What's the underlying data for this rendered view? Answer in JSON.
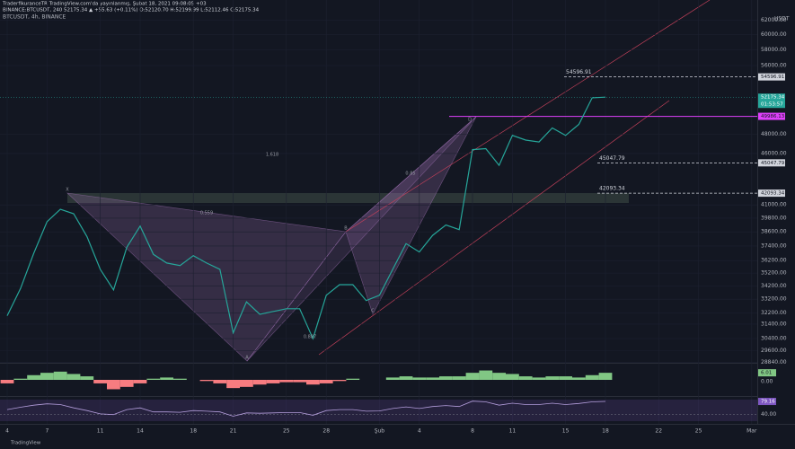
{
  "header": {
    "publisher": "TraderfikuranceTR TradingView.com'da yayınlanmış, Şubat 18, 2021 09:08:05 +03",
    "symbol_line": "BINANCE:BTCUSDT, 240  52175.34 ▲ +55.63 (+0.11%) O:52120.70 H:52199.99 L:52112.46 C:52175.34"
  },
  "chart_data": {
    "type": "line",
    "title": "BTCUSDT, 4h, BINANCE",
    "y_unit": "USDT",
    "categories": [
      "4",
      null,
      null,
      "7",
      null,
      null,
      null,
      "11",
      null,
      null,
      "14",
      null,
      null,
      null,
      "18",
      null,
      null,
      "21",
      null,
      null,
      null,
      "25",
      null,
      null,
      "28",
      null,
      null,
      null,
      "Şub",
      null,
      null,
      "4",
      null,
      null,
      null,
      "8",
      null,
      null,
      "11",
      null,
      null,
      null,
      "15",
      null,
      null,
      "18",
      null,
      null,
      null,
      "22",
      null,
      null,
      "25",
      null,
      null,
      null,
      "Mar"
    ],
    "values": [
      32000,
      34000,
      36800,
      39500,
      40600,
      40200,
      38200,
      35500,
      33900,
      37300,
      39100,
      36700,
      36000,
      35800,
      36600,
      36000,
      35500,
      30800,
      33000,
      32100,
      32300,
      32500,
      32500,
      30400,
      33500,
      34300,
      34300,
      33100,
      33500,
      35500,
      37600,
      36900,
      38300,
      39200,
      38800,
      46400,
      46500,
      44800,
      47900,
      47400,
      47200,
      48700,
      47900,
      49100,
      52100,
      52175.34,
      null,
      null,
      null,
      null,
      null,
      null,
      null,
      null,
      null,
      null,
      null
    ],
    "color": "#26a69a",
    "log_scale": true,
    "grid": true,
    "ylim": [
      28800,
      64200
    ],
    "yticks": [
      {
        "value": 62000,
        "label": "62000.00"
      },
      {
        "value": 60000,
        "label": "60000.00"
      },
      {
        "value": 58000,
        "label": "58000.00"
      },
      {
        "value": 56000,
        "label": "56000.00"
      },
      {
        "value": 48000,
        "label": "48000.00"
      },
      {
        "value": 46000,
        "label": "46000.00"
      },
      {
        "value": 41000,
        "label": "41000.00"
      },
      {
        "value": 39800,
        "label": "39800.00"
      },
      {
        "value": 38600,
        "label": "38600.00"
      },
      {
        "value": 37400,
        "label": "37400.00"
      },
      {
        "value": 36200,
        "label": "36200.00"
      },
      {
        "value": 35200,
        "label": "35200.00"
      },
      {
        "value": 34200,
        "label": "34200.00"
      },
      {
        "value": 33200,
        "label": "33200.00"
      },
      {
        "value": 32200,
        "label": "32200.00"
      },
      {
        "value": 31400,
        "label": "31400.00"
      },
      {
        "value": 30400,
        "label": "30400.00"
      },
      {
        "value": 29600,
        "label": "29600.00"
      },
      {
        "value": 28840,
        "label": "28840.00"
      }
    ],
    "levels": [
      {
        "value": 54596.91,
        "color": "#d1d4dc",
        "style": "dashed"
      },
      {
        "value": 49986.13,
        "color": "#e040fb",
        "style": "solid"
      },
      {
        "value": 45047.79,
        "color": "#d1d4dc",
        "style": "dashed"
      },
      {
        "value": 42093.34,
        "color": "#d1d4dc",
        "style": "dashed"
      }
    ],
    "last_price": 52175.34,
    "countdown": "01:53:57",
    "annotations": [
      "1.618",
      "0.559",
      "0.85",
      "0.887",
      "X",
      "A",
      "B",
      "C",
      "D"
    ],
    "oscillator": {
      "values": [
        -3,
        1,
        4,
        6,
        7,
        5,
        3,
        -3,
        -8,
        -6,
        -3,
        1,
        2,
        1,
        0,
        -1,
        -3,
        -7,
        -6,
        -4,
        -3,
        -2,
        -2,
        -4,
        -3,
        -1,
        1,
        0,
        0,
        2,
        3,
        2,
        2,
        3,
        3,
        6,
        8,
        6,
        5,
        3,
        2,
        3,
        3,
        2,
        4,
        6.01,
        null,
        null,
        null,
        null,
        null,
        null,
        null,
        null,
        null,
        null,
        null
      ],
      "ylim": [
        -13,
        13
      ],
      "yticks": [
        {
          "value": 0,
          "label": "0.00"
        }
      ],
      "color_up": "#81c784",
      "color_down": "#f77c80"
    },
    "rsi": {
      "values": [
        55,
        62,
        68,
        72,
        70,
        60,
        52,
        42,
        40,
        55,
        60,
        48,
        48,
        47,
        52,
        50,
        48,
        35,
        45,
        44,
        45,
        46,
        46,
        38,
        52,
        55,
        55,
        50,
        51,
        58,
        63,
        58,
        64,
        67,
        64,
        80,
        78,
        68,
        74,
        70,
        70,
        74,
        70,
        73,
        78,
        79.16,
        null,
        null,
        null,
        null,
        null,
        null,
        null,
        null,
        null,
        null,
        null
      ],
      "ylim": [
        15,
        90
      ],
      "yticks": [
        {
          "value": 40,
          "label": "40.00"
        }
      ],
      "color": "#7e57c2"
    }
  },
  "footer": "TradingView"
}
